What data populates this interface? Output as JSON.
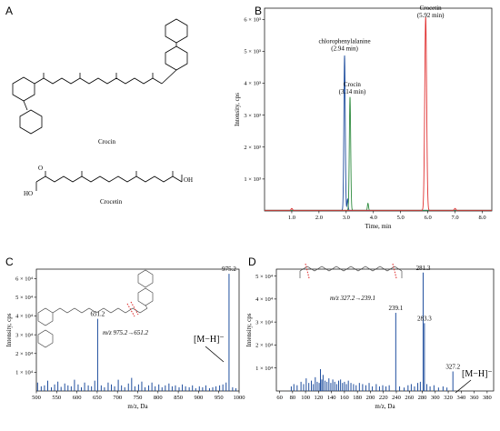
{
  "panel_labels": [
    "A",
    "B",
    "C",
    "D"
  ],
  "molecules": {
    "crocin_name": "Crocin",
    "crocetin_name": "Crocetin",
    "oh": "OH",
    "ho": "HO",
    "o": "O"
  },
  "chart_data": [
    {
      "id": "B",
      "type": "line",
      "title": "",
      "xlabel": "Time, min",
      "ylabel": "Intensity, cps",
      "xlim": [
        0,
        8.35
      ],
      "ylim": [
        0,
        6.35
      ],
      "x_ticks": [
        "1.0",
        "2.0",
        "3.0",
        "4.0",
        "5.0",
        "6.0",
        "7.0",
        "8.0"
      ],
      "x_tick_values": [
        1,
        2,
        3,
        4,
        5,
        6,
        7,
        8
      ],
      "y_ticks": [
        "1 × 10³",
        "2 × 10³",
        "3 × 10³",
        "4 × 10³",
        "5 × 10³",
        "6 × 10³"
      ],
      "y_tick_values": [
        1,
        2,
        3,
        4,
        5,
        6
      ],
      "series": [
        {
          "color": "#1f4e9e",
          "peaks": [
            {
              "x": 2.94,
              "h": 4.85,
              "w": 0.05
            },
            {
              "x": 3.05,
              "h": 0.35,
              "w": 0.04
            }
          ]
        },
        {
          "color": "#2e8b3e",
          "peaks": [
            {
              "x": 3.14,
              "h": 3.55,
              "w": 0.05
            },
            {
              "x": 3.8,
              "h": 0.22,
              "w": 0.04
            }
          ]
        },
        {
          "color": "#e03030",
          "peaks": [
            {
              "x": 5.92,
              "h": 6.05,
              "w": 0.07
            },
            {
              "x": 1.0,
              "h": 0.06,
              "w": 0.05
            },
            {
              "x": 7.0,
              "h": 0.06,
              "w": 0.05
            }
          ]
        }
      ],
      "annotations": [
        {
          "lines": [
            "chlorophenylalanine",
            "(2.94 min)"
          ],
          "x": 2.94,
          "y": 5.05
        },
        {
          "lines": [
            "Crocin",
            "(3.14 min)"
          ],
          "x": 3.22,
          "y": 3.7
        },
        {
          "lines": [
            "Crocetin",
            "(5.92 min)"
          ],
          "x": 6.1,
          "y": 6.1
        }
      ]
    },
    {
      "id": "C",
      "type": "bar",
      "title": "",
      "xlabel": "m/z, Da",
      "ylabel": "Intensity, cps",
      "xlim": [
        500,
        1000
      ],
      "ylim": [
        0,
        6.5
      ],
      "x_ticks": [
        "500",
        "550",
        "600",
        "650",
        "700",
        "750",
        "800",
        "850",
        "900",
        "950",
        "1000"
      ],
      "x_tick_values": [
        500,
        550,
        600,
        650,
        700,
        750,
        800,
        850,
        900,
        950,
        1000
      ],
      "y_ticks": [
        "1 × 10⁴",
        "2 × 10⁴",
        "3 × 10⁴",
        "4 × 10⁴",
        "5 × 10⁴",
        "6 × 10⁴"
      ],
      "y_tick_values": [
        1,
        2,
        3,
        4,
        5,
        6
      ],
      "color": "#1f4e9e",
      "peaks_mz": [
        503,
        512,
        520,
        528,
        537,
        545,
        553,
        561,
        570,
        578,
        586,
        594,
        603,
        611,
        619,
        628,
        636,
        644,
        651.2,
        660,
        668,
        677,
        685,
        693,
        702,
        710,
        718,
        727,
        735,
        743,
        752,
        760,
        768,
        777,
        785,
        793,
        802,
        810,
        818,
        827,
        835,
        843,
        852,
        860,
        868,
        877,
        885,
        893,
        902,
        910,
        918,
        927,
        935,
        943,
        952,
        960,
        968,
        975.2,
        984,
        992
      ],
      "peaks_intensity": [
        0.45,
        0.25,
        0.3,
        0.55,
        0.2,
        0.35,
        0.5,
        0.22,
        0.4,
        0.3,
        0.25,
        0.6,
        0.35,
        0.2,
        0.45,
        0.3,
        0.25,
        0.55,
        3.85,
        0.3,
        0.2,
        0.45,
        0.35,
        0.25,
        0.6,
        0.3,
        0.2,
        0.4,
        0.7,
        0.25,
        0.35,
        0.5,
        0.2,
        0.3,
        0.45,
        0.25,
        0.35,
        0.2,
        0.3,
        0.4,
        0.25,
        0.3,
        0.2,
        0.35,
        0.25,
        0.2,
        0.3,
        0.15,
        0.25,
        0.2,
        0.3,
        0.15,
        0.2,
        0.25,
        0.3,
        0.35,
        0.45,
        6.25,
        0.2,
        0.15
      ],
      "peak_labels": [
        {
          "text": "651.2",
          "x": 651.2,
          "y": 3.85
        },
        {
          "text": "975.2",
          "x": 975.2,
          "y": 6.25
        }
      ],
      "transition": "m/z 975.2→651.2",
      "ion": "[M−H]⁻"
    },
    {
      "id": "D",
      "type": "bar",
      "title": "",
      "xlabel": "m/z, Da",
      "ylabel": "Intensity, cps",
      "xlim": [
        55,
        390
      ],
      "ylim": [
        0,
        5.3
      ],
      "x_ticks": [
        "60",
        "80",
        "100",
        "120",
        "140",
        "160",
        "180",
        "200",
        "220",
        "240",
        "260",
        "280",
        "300",
        "320",
        "340",
        "360",
        "380"
      ],
      "x_tick_values": [
        60,
        80,
        100,
        120,
        140,
        160,
        180,
        200,
        220,
        240,
        260,
        280,
        300,
        320,
        340,
        360,
        380
      ],
      "y_ticks": [
        "1 × 10⁴",
        "2 × 10⁴",
        "3 × 10⁴",
        "4 × 10⁴",
        "5 × 10⁴"
      ],
      "y_tick_values": [
        1,
        2,
        3,
        4,
        5
      ],
      "color": "#1f4e9e",
      "peaks_mz": [
        78,
        82,
        87,
        93,
        97,
        101,
        105,
        109,
        112,
        115,
        118,
        121,
        123,
        125,
        127,
        130,
        133,
        136,
        139,
        142,
        145,
        148,
        151,
        154,
        157,
        160,
        163,
        166,
        170,
        174,
        178,
        183,
        188,
        193,
        198,
        203,
        209,
        214,
        219,
        224,
        229,
        239.1,
        245,
        252,
        258,
        263,
        268,
        273,
        277,
        281.3,
        283.3,
        287,
        292,
        298,
        305,
        312,
        318,
        327.2
      ],
      "peaks_intensity": [
        0.2,
        0.3,
        0.25,
        0.4,
        0.3,
        0.55,
        0.35,
        0.45,
        0.3,
        0.6,
        0.4,
        0.35,
        0.95,
        0.5,
        0.7,
        0.45,
        0.4,
        0.55,
        0.35,
        0.5,
        0.4,
        0.3,
        0.45,
        0.5,
        0.35,
        0.4,
        0.3,
        0.45,
        0.35,
        0.3,
        0.25,
        0.35,
        0.3,
        0.25,
        0.35,
        0.2,
        0.3,
        0.2,
        0.25,
        0.2,
        0.25,
        3.4,
        0.2,
        0.15,
        0.25,
        0.3,
        0.2,
        0.35,
        0.4,
        5.15,
        2.95,
        0.3,
        0.2,
        0.25,
        0.15,
        0.2,
        0.15,
        0.85
      ],
      "peak_labels": [
        {
          "text": "239.1",
          "x": 239.1,
          "y": 3.4
        },
        {
          "text": "281.3",
          "x": 281.3,
          "y": 5.15
        },
        {
          "text": "283.3",
          "x": 283.3,
          "y": 2.95
        },
        {
          "text": "327.2",
          "x": 327.2,
          "y": 0.85
        }
      ],
      "transition": "m/z 327.2→239.1",
      "ion": "[M−H]⁻"
    }
  ]
}
